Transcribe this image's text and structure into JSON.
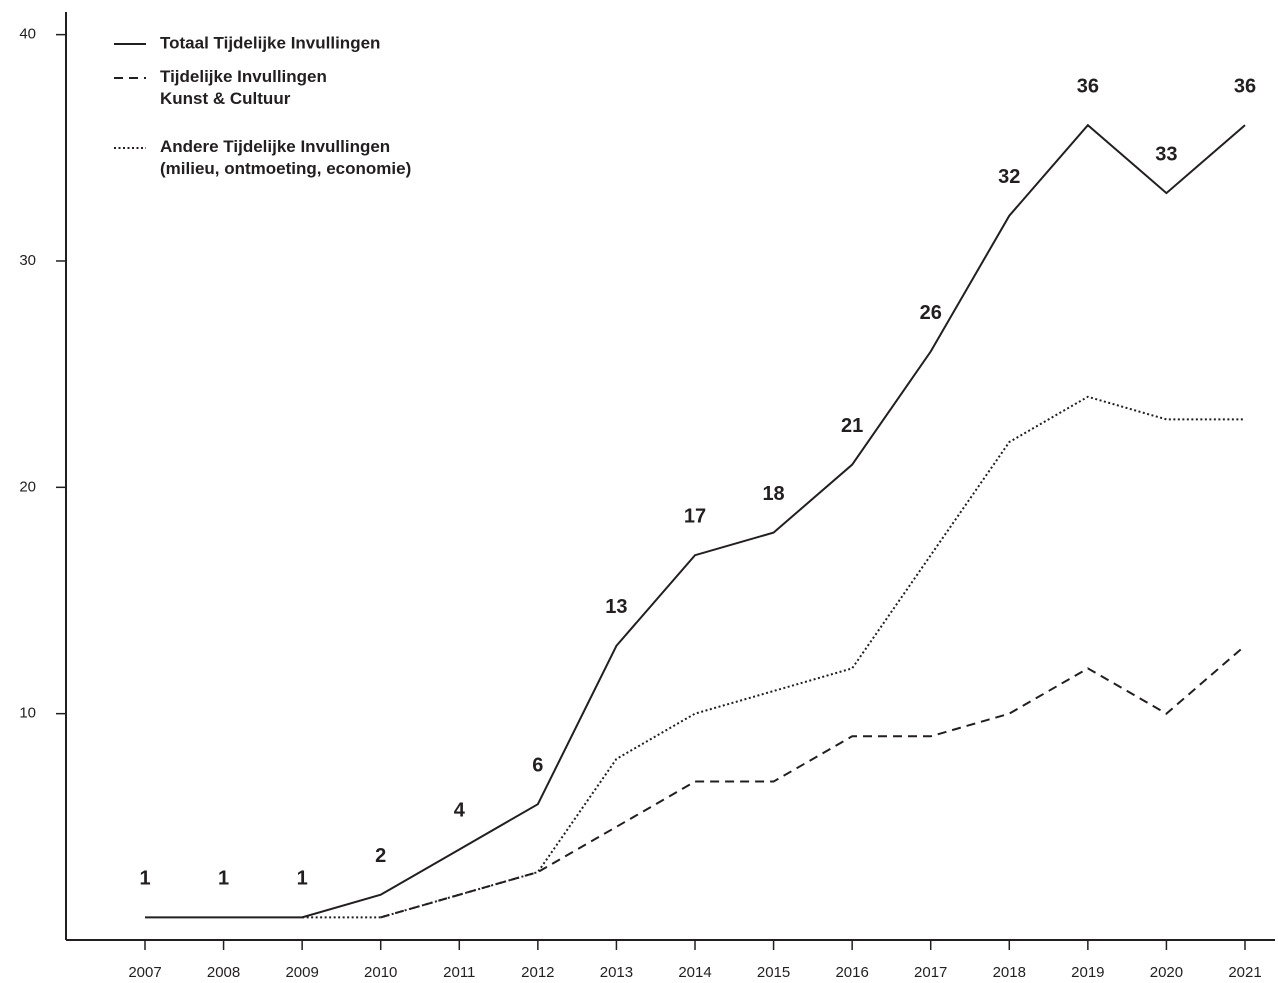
{
  "chart_data": {
    "type": "line",
    "categories": [
      "2007",
      "2008",
      "2009",
      "2010",
      "2011",
      "2012",
      "2013",
      "2014",
      "2015",
      "2016",
      "2017",
      "2018",
      "2019",
      "2020",
      "2021"
    ],
    "series": [
      {
        "name": "Totaal Tijdelijke Invullingen",
        "color": "#231f20",
        "dash": "solid",
        "show_values": true,
        "values": [
          1,
          1,
          1,
          2,
          4,
          6,
          13,
          17,
          18,
          21,
          26,
          32,
          36,
          33,
          36
        ]
      },
      {
        "name": "Tijdelijke Invullingen\nKunst & Cultuur",
        "color": "#231f20",
        "dash": "dashed",
        "show_values": false,
        "values": [
          null,
          null,
          null,
          1,
          2,
          3,
          5,
          7,
          7,
          9,
          9,
          10,
          12,
          10,
          13
        ]
      },
      {
        "name": "Andere Tijdelijke Invullingen\n(milieu, ontmoeting, economie)",
        "color": "#231f20",
        "dash": "dotted",
        "show_values": false,
        "values": [
          null,
          null,
          1,
          1,
          2,
          3,
          8,
          10,
          11,
          12,
          17,
          22,
          24,
          23,
          23
        ]
      }
    ],
    "ylim": [
      0,
      41
    ],
    "yticks": [
      10,
      20,
      30,
      40
    ],
    "grid": false,
    "legend": "top-left"
  }
}
